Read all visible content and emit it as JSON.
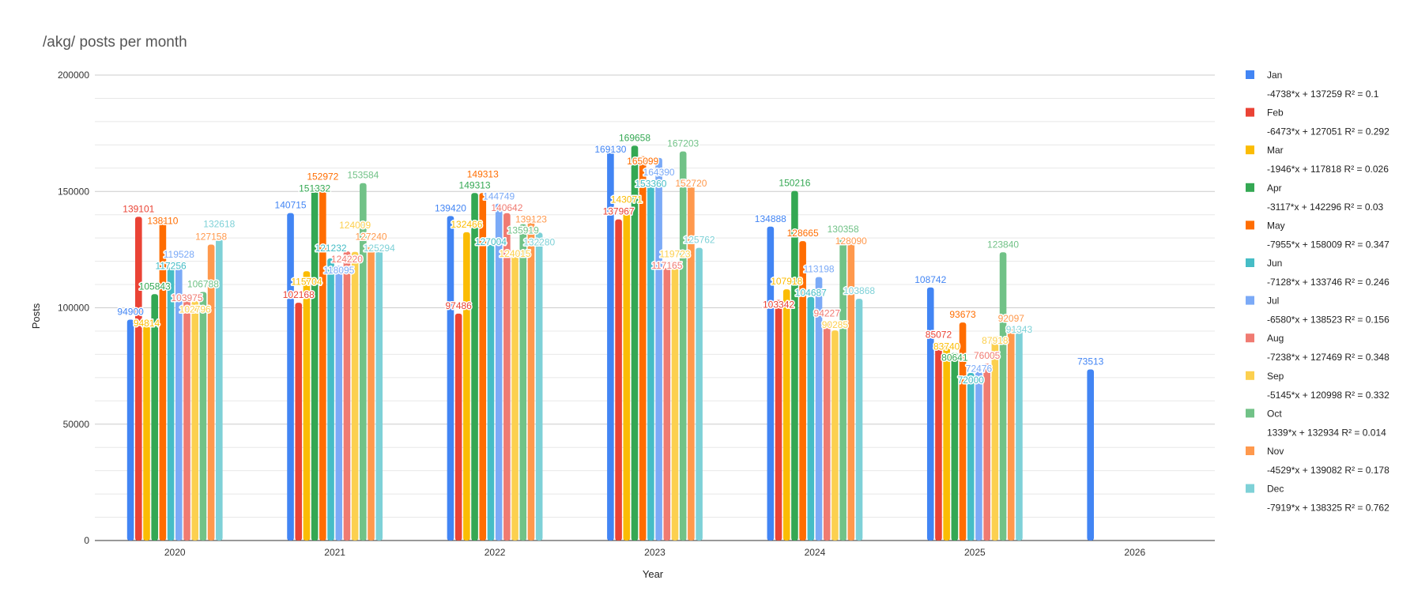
{
  "chart_data": {
    "type": "bar",
    "title": "/akg/ posts per month",
    "xlabel": "Year",
    "ylabel": "Posts",
    "ylim": [
      0,
      200000
    ],
    "yticks": [
      "0",
      "50000",
      "100000",
      "150000",
      "200000"
    ],
    "grid": true,
    "legend_placement": "right",
    "categories": [
      "2020",
      "2021",
      "2022",
      "2023",
      "2024",
      "2025",
      "2026"
    ],
    "series": [
      {
        "name": "Jan",
        "color": "#4285f4",
        "trend": "-4738*x + 137259 R² = 0.1",
        "values": [
          94900,
          140715,
          139420,
          169130,
          134888,
          108742,
          73513
        ]
      },
      {
        "name": "Feb",
        "color": "#ea4335",
        "trend": "-6473*x + 127051 R² = 0.292",
        "values": [
          139101,
          102168,
          97486,
          137967,
          103342,
          85072,
          null
        ]
      },
      {
        "name": "Mar",
        "color": "#fbbc04",
        "trend": "-1946*x + 117818 R² = 0.026",
        "values": [
          94814,
          115704,
          132466,
          143071,
          107918,
          83740,
          null
        ]
      },
      {
        "name": "Apr",
        "color": "#34a853",
        "trend": "-3117*x + 142296 R² = 0.03",
        "values": [
          105843,
          151332,
          149313,
          169658,
          150216,
          80641,
          null
        ]
      },
      {
        "name": "May",
        "color": "#ff6d01",
        "trend": "-7955*x + 158009 R² = 0.347",
        "values": [
          138110,
          152972,
          149313,
          165099,
          128665,
          93673,
          null
        ]
      },
      {
        "name": "Jun",
        "color": "#46bdc6",
        "trend": "-7128*x + 133746 R² = 0.246",
        "values": [
          117256,
          121232,
          127004,
          153360,
          104687,
          72000,
          null
        ]
      },
      {
        "name": "Jul",
        "color": "#7baaf7",
        "trend": "-6580*x + 138523 R² = 0.156",
        "values": [
          119528,
          118095,
          144749,
          164390,
          113198,
          72476,
          null
        ]
      },
      {
        "name": "Aug",
        "color": "#f07b72",
        "trend": "-7238*x + 127469 R² = 0.348",
        "values": [
          103975,
          124220,
          140642,
          117165,
          94227,
          76005,
          null
        ]
      },
      {
        "name": "Sep",
        "color": "#fcd04f",
        "trend": "-5145*x + 120998 R² = 0.332",
        "values": [
          102796,
          124009,
          124015,
          119723,
          90285,
          87918,
          null
        ]
      },
      {
        "name": "Oct",
        "color": "#71c287",
        "trend": "1339*x + 132934 R² = 0.014",
        "values": [
          106788,
          153584,
          135919,
          167203,
          130358,
          123840,
          null
        ]
      },
      {
        "name": "Nov",
        "color": "#ff994d",
        "trend": "-4529*x + 139082 R² = 0.178",
        "values": [
          127158,
          127240,
          139123,
          152720,
          128090,
          92097,
          null
        ]
      },
      {
        "name": "Dec",
        "color": "#7ed1d7",
        "trend": "-7919*x + 138325 R² = 0.762",
        "values": [
          132618,
          125294,
          132280,
          125762,
          103868,
          91343,
          null
        ]
      }
    ]
  }
}
